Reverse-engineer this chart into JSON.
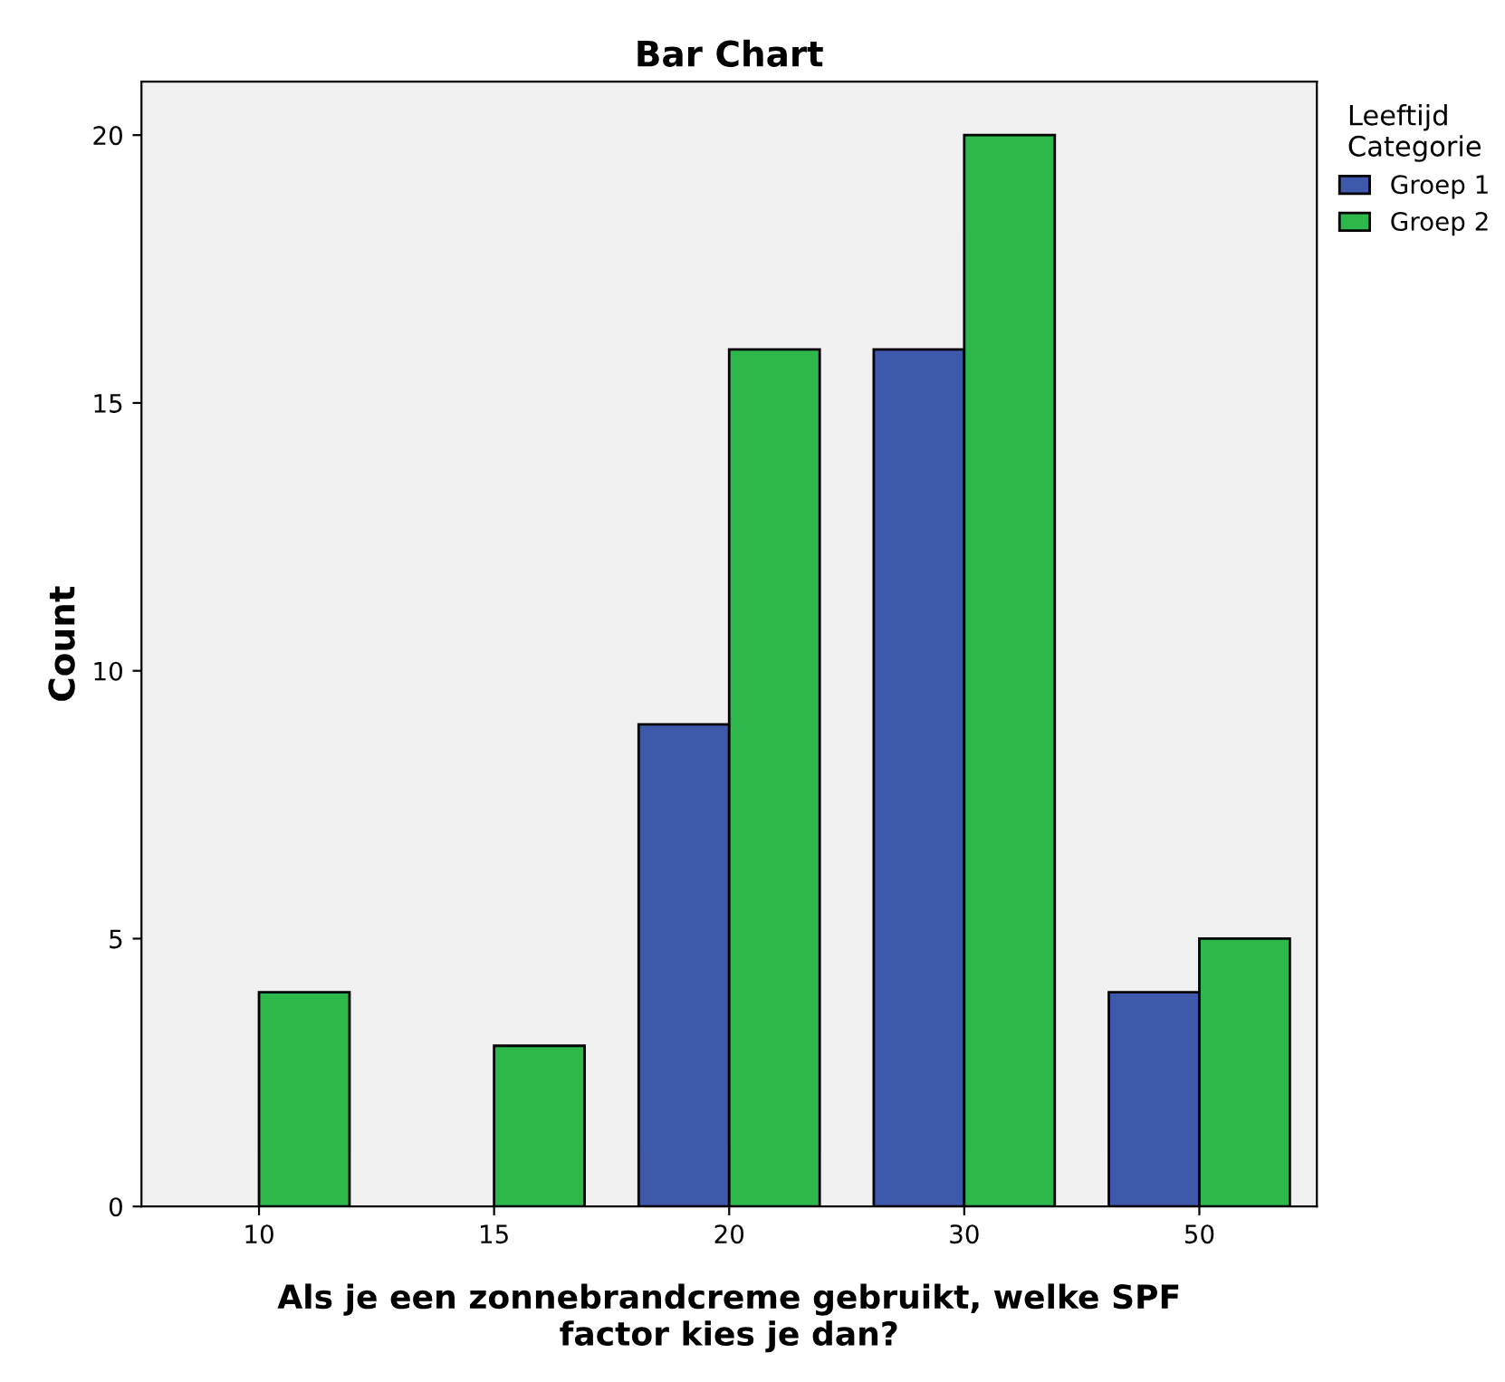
{
  "chart_data": {
    "type": "bar",
    "title": "Bar Chart",
    "xlabel": "Als je een zonnebrandcreme gebruikt, welke SPF\nfactor kies je dan?",
    "ylabel": "Count",
    "legend_title": "Leeftijd\nCategorie",
    "categories": [
      "10",
      "15",
      "20",
      "30",
      "50"
    ],
    "series": [
      {
        "name": "Groep 1",
        "color": "#3e58ac",
        "values": [
          null,
          null,
          9,
          16,
          4
        ]
      },
      {
        "name": "Groep 2",
        "color": "#2db84b",
        "values": [
          4,
          3,
          16,
          20,
          5
        ]
      }
    ],
    "ylim": [
      0,
      21
    ],
    "yticks": [
      0,
      5,
      10,
      15,
      20
    ],
    "grid": false,
    "legend": "top right"
  }
}
